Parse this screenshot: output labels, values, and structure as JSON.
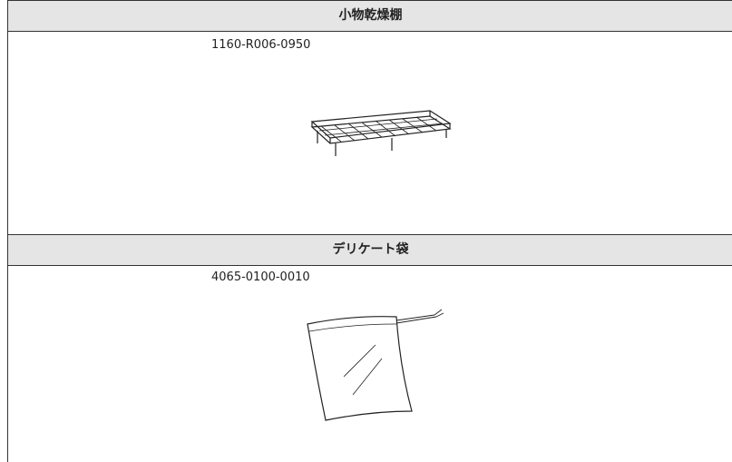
{
  "sections": [
    {
      "title": "小物乾燥棚",
      "part_number": "1160-R006-0950"
    },
    {
      "title": "デリケート袋",
      "part_number": "4065-0100-0010"
    }
  ]
}
